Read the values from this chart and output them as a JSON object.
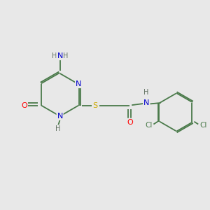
{
  "bg_color": "#e8e8e8",
  "atom_colors": {
    "C": "#4a7a4a",
    "N": "#0000cc",
    "O": "#ff0000",
    "S": "#ccaa00",
    "Cl": "#4a7a4a",
    "H": "#607060"
  },
  "bond_color": "#4a7a4a",
  "font_size": 8.0,
  "fig_w": 3.0,
  "fig_h": 3.0,
  "dpi": 100
}
